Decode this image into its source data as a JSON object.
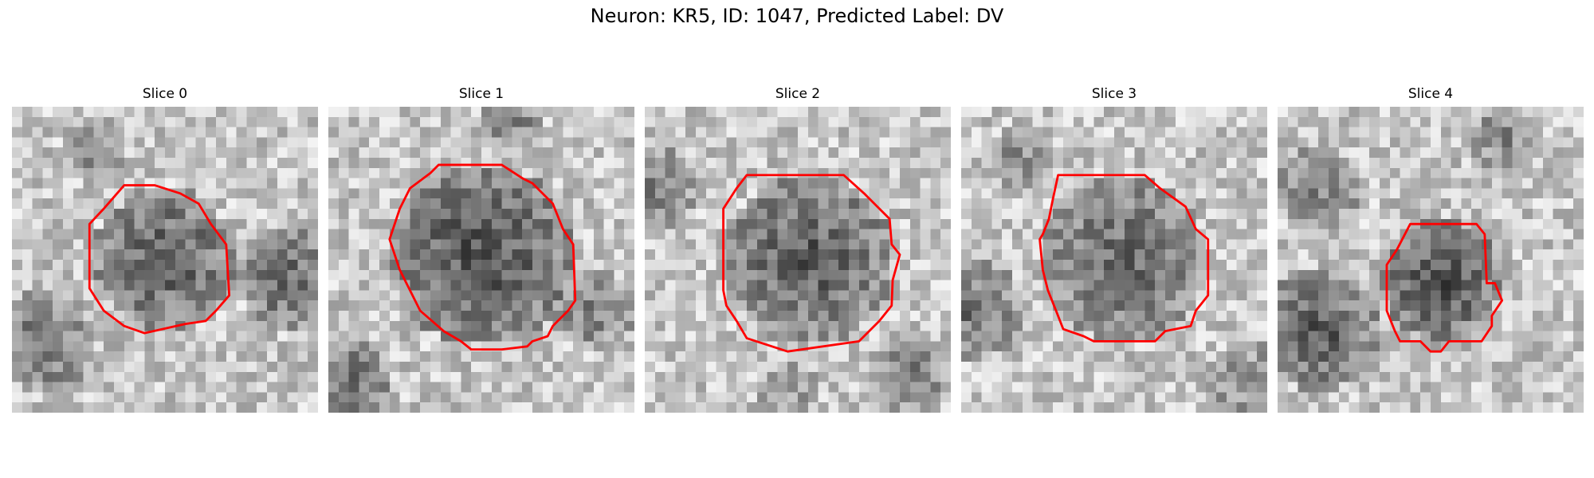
{
  "figure": {
    "title": "Neuron: KR5, ID: 1047, Predicted Label: DV"
  },
  "colors": {
    "outline": "#ff0000",
    "background": "#ffffff"
  },
  "panels": [
    {
      "title": "Slice 0"
    },
    {
      "title": "Slice 1"
    },
    {
      "title": "Slice 2"
    },
    {
      "title": "Slice 3"
    },
    {
      "title": "Slice 4"
    }
  ]
}
